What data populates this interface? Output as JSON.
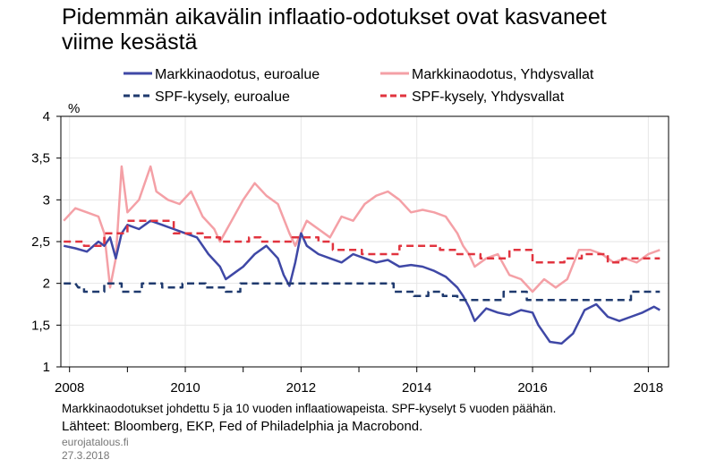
{
  "title_line1": "Pidemmän aikavälin inflaatio-odotukset ovat kasvaneet",
  "title_line2": "viime kesästä",
  "footer": {
    "note": "Markkinaodotukset johdettu 5 ja 10 vuoden inflaatiowapeista. SPF-kyselyt 5 vuoden päähän.",
    "sources": "Lähteet: Bloomberg, EKP, Fed of Philadelphia ja Macrobond.",
    "site": "eurojatalous.fi",
    "date": "27.3.2018"
  },
  "colors": {
    "euro_market": "#3f48a6",
    "us_market": "#f4a0a6",
    "spf_euro": "#1f3a6e",
    "spf_us": "#e1343f"
  },
  "chart_data": {
    "type": "line",
    "ylabel": "%",
    "ylim": [
      1,
      4
    ],
    "yticks": [
      "1",
      "1,5",
      "2",
      "2,5",
      "3",
      "3,5",
      "4"
    ],
    "xlim": [
      2007.85,
      2018.35
    ],
    "xticks": [
      "2008",
      "2010",
      "2012",
      "2014",
      "2016",
      "2018"
    ],
    "legend": "top",
    "series": [
      {
        "name": "Markkinaodotus, euroalue",
        "style": "solid",
        "color": "#3f48a6",
        "x": [
          2007.9,
          2008.1,
          2008.3,
          2008.5,
          2008.6,
          2008.7,
          2008.8,
          2008.9,
          2009.0,
          2009.2,
          2009.4,
          2009.6,
          2009.8,
          2010.0,
          2010.2,
          2010.4,
          2010.6,
          2010.7,
          2010.8,
          2010.9,
          2011.0,
          2011.2,
          2011.4,
          2011.6,
          2011.7,
          2011.8,
          2011.9,
          2012.0,
          2012.1,
          2012.3,
          2012.5,
          2012.7,
          2012.9,
          2013.1,
          2013.3,
          2013.5,
          2013.7,
          2013.9,
          2014.1,
          2014.3,
          2014.5,
          2014.7,
          2014.8,
          2014.9,
          2015.0,
          2015.2,
          2015.4,
          2015.6,
          2015.8,
          2016.0,
          2016.1,
          2016.2,
          2016.3,
          2016.5,
          2016.7,
          2016.9,
          2017.1,
          2017.3,
          2017.5,
          2017.7,
          2017.9,
          2018.1,
          2018.2
        ],
        "y": [
          2.45,
          2.42,
          2.38,
          2.5,
          2.45,
          2.55,
          2.3,
          2.6,
          2.7,
          2.65,
          2.75,
          2.7,
          2.65,
          2.6,
          2.55,
          2.35,
          2.2,
          2.05,
          2.1,
          2.15,
          2.2,
          2.35,
          2.45,
          2.3,
          2.1,
          1.97,
          2.25,
          2.6,
          2.45,
          2.35,
          2.3,
          2.25,
          2.35,
          2.3,
          2.25,
          2.28,
          2.2,
          2.22,
          2.2,
          2.15,
          2.08,
          1.95,
          1.85,
          1.72,
          1.55,
          1.7,
          1.65,
          1.62,
          1.68,
          1.65,
          1.5,
          1.4,
          1.3,
          1.28,
          1.4,
          1.68,
          1.75,
          1.6,
          1.55,
          1.6,
          1.65,
          1.72,
          1.68
        ]
      },
      {
        "name": "Markkinaodotus, Yhdysvallat",
        "style": "solid",
        "color": "#f4a0a6",
        "x": [
          2007.9,
          2008.1,
          2008.3,
          2008.5,
          2008.6,
          2008.7,
          2008.8,
          2008.9,
          2009.0,
          2009.2,
          2009.4,
          2009.5,
          2009.7,
          2009.9,
          2010.1,
          2010.3,
          2010.5,
          2010.6,
          2010.8,
          2011.0,
          2011.2,
          2011.4,
          2011.6,
          2011.8,
          2011.9,
          2012.1,
          2012.3,
          2012.5,
          2012.7,
          2012.9,
          2013.1,
          2013.3,
          2013.5,
          2013.7,
          2013.9,
          2014.1,
          2014.3,
          2014.5,
          2014.7,
          2014.8,
          2014.9,
          2015.0,
          2015.2,
          2015.4,
          2015.6,
          2015.8,
          2016.0,
          2016.2,
          2016.4,
          2016.6,
          2016.8,
          2017.0,
          2017.2,
          2017.4,
          2017.6,
          2017.8,
          2018.0,
          2018.2
        ],
        "y": [
          2.75,
          2.9,
          2.85,
          2.8,
          2.6,
          1.95,
          2.3,
          3.4,
          2.85,
          3.0,
          3.4,
          3.1,
          3.0,
          2.95,
          3.1,
          2.8,
          2.65,
          2.5,
          2.75,
          3.0,
          3.2,
          3.05,
          2.95,
          2.6,
          2.45,
          2.75,
          2.65,
          2.55,
          2.8,
          2.75,
          2.95,
          3.05,
          3.1,
          3.0,
          2.85,
          2.88,
          2.85,
          2.8,
          2.6,
          2.45,
          2.35,
          2.2,
          2.3,
          2.35,
          2.1,
          2.05,
          1.9,
          2.05,
          1.95,
          2.05,
          2.4,
          2.4,
          2.35,
          2.25,
          2.3,
          2.25,
          2.35,
          2.4
        ]
      },
      {
        "name": "SPF-kysely, euroalue",
        "style": "dashed",
        "color": "#1f3a6e",
        "x": [
          2007.9,
          2008.1,
          2008.15,
          2008.25,
          2008.25,
          2008.6,
          2008.6,
          2008.9,
          2008.9,
          2009.25,
          2009.25,
          2009.6,
          2009.6,
          2009.95,
          2009.95,
          2010.35,
          2010.35,
          2010.7,
          2010.7,
          2010.95,
          2010.95,
          2013.6,
          2013.6,
          2013.95,
          2013.95,
          2014.2,
          2014.2,
          2014.45,
          2014.45,
          2014.7,
          2014.7,
          2015.5,
          2015.5,
          2015.9,
          2015.9,
          2017.7,
          2017.7,
          2018.2
        ],
        "y": [
          2.0,
          2.0,
          1.95,
          1.95,
          1.9,
          1.9,
          2.0,
          2.0,
          1.9,
          1.9,
          2.0,
          2.0,
          1.95,
          1.95,
          2.0,
          2.0,
          1.95,
          1.95,
          1.9,
          1.9,
          2.0,
          2.0,
          1.9,
          1.9,
          1.85,
          1.85,
          1.9,
          1.9,
          1.85,
          1.85,
          1.8,
          1.8,
          1.9,
          1.9,
          1.8,
          1.8,
          1.9,
          1.9
        ]
      },
      {
        "name": "SPF-kysely, Yhdysvallat",
        "style": "dashed",
        "color": "#e1343f",
        "x": [
          2007.9,
          2008.25,
          2008.25,
          2008.6,
          2008.6,
          2009.0,
          2009.0,
          2009.8,
          2009.8,
          2010.3,
          2010.3,
          2010.6,
          2010.6,
          2011.1,
          2011.1,
          2011.3,
          2011.3,
          2011.85,
          2011.85,
          2012.3,
          2012.3,
          2012.55,
          2012.55,
          2013.05,
          2013.05,
          2013.7,
          2013.7,
          2014.4,
          2014.4,
          2014.7,
          2014.7,
          2015.1,
          2015.1,
          2015.6,
          2015.6,
          2016.0,
          2016.0,
          2016.55,
          2016.55,
          2016.85,
          2016.85,
          2017.3,
          2017.3,
          2017.55,
          2017.55,
          2018.2
        ],
        "y": [
          2.5,
          2.5,
          2.45,
          2.45,
          2.6,
          2.6,
          2.75,
          2.75,
          2.6,
          2.6,
          2.55,
          2.55,
          2.5,
          2.5,
          2.55,
          2.55,
          2.5,
          2.5,
          2.55,
          2.55,
          2.5,
          2.5,
          2.4,
          2.4,
          2.35,
          2.35,
          2.45,
          2.45,
          2.4,
          2.4,
          2.35,
          2.35,
          2.3,
          2.3,
          2.4,
          2.4,
          2.25,
          2.25,
          2.3,
          2.3,
          2.35,
          2.35,
          2.25,
          2.25,
          2.3,
          2.3
        ]
      }
    ]
  }
}
